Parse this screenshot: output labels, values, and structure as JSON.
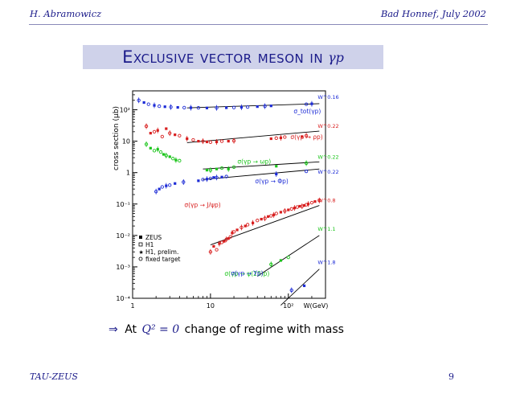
{
  "header": {
    "left": "H. Abramowicz",
    "right": "Bad Honnef, July 2002"
  },
  "title": {
    "text": "Exclusive vector meson in",
    "math": "γp"
  },
  "bullet": {
    "arrow": "⇒",
    "prefix": "At",
    "math": "Q² = 0",
    "text": "change of regime with mass"
  },
  "footer": {
    "left": "TAU-ZEUS",
    "page": "9"
  },
  "colors": {
    "accent": "#1b1b8a",
    "title_bg": "#cfd2ea",
    "blue": "#1c2bd6",
    "red": "#d81e1e",
    "green": "#19c419",
    "black": "#000000"
  },
  "chart_data": {
    "type": "scatter",
    "title": "",
    "xlabel": "W(GeV)",
    "ylabel": "cross section (μb)",
    "xscale": "log",
    "yscale": "log",
    "xlim": [
      1,
      300
    ],
    "ylim": [
      0.0001,
      400
    ],
    "x_ticks": [
      "1",
      "10",
      "10²"
    ],
    "y_ticks": [
      "10⁻⁴",
      "10⁻³",
      "10⁻²",
      "10⁻¹",
      "1",
      "10",
      "10²"
    ],
    "legend": {
      "placement": "lower-left",
      "entries": [
        {
          "marker": "filled-square",
          "label": "ZEUS"
        },
        {
          "marker": "open-square",
          "label": "H1"
        },
        {
          "marker": "star",
          "label": "H1, prelim."
        },
        {
          "marker": "open-circle",
          "label": "fixed target"
        }
      ]
    },
    "series": [
      {
        "label": "σ_tot(γp)",
        "fit_label": "W^0.16",
        "color": "blue",
        "x": [
          1.2,
          1.4,
          1.6,
          1.9,
          2.2,
          2.6,
          3.1,
          3.8,
          4.6,
          5.6,
          7,
          9,
          12,
          16,
          20,
          25,
          30,
          40,
          50,
          60,
          170,
          200
        ],
        "y": [
          200,
          170,
          150,
          138,
          130,
          125,
          122,
          119,
          117,
          116,
          115,
          114,
          115,
          116,
          118,
          120,
          122,
          126,
          130,
          133,
          150,
          155
        ],
        "fit": [
          [
            5,
            115
          ],
          [
            250,
            156
          ]
        ]
      },
      {
        "label": "σ(γp → ρp)",
        "fit_label": "W^0.22",
        "color": "red",
        "x": [
          1.5,
          1.7,
          1.9,
          2.1,
          2.4,
          2.7,
          3.0,
          3.5,
          4,
          5,
          6,
          7,
          8,
          9,
          10,
          12,
          14,
          17,
          20,
          60,
          70,
          80,
          90,
          150,
          170
        ],
        "y": [
          30,
          18,
          20,
          22,
          14,
          25,
          18,
          16,
          15,
          12,
          11,
          10,
          10,
          9.5,
          9.3,
          9.5,
          10,
          10,
          10.3,
          12,
          12.5,
          12.8,
          13.5,
          14,
          15
        ],
        "fit": [
          [
            5,
            9
          ],
          [
            250,
            21
          ]
        ]
      },
      {
        "label": "σ(γp → ωp)",
        "fit_label": "W^0.22",
        "color": "green",
        "x": [
          1.5,
          1.7,
          1.9,
          2.1,
          2.3,
          2.5,
          2.7,
          3.0,
          3.3,
          3.6,
          4.0,
          9,
          10,
          12,
          14,
          17,
          20,
          70,
          170
        ],
        "y": [
          8,
          6,
          5,
          5.5,
          4.5,
          3.8,
          3.5,
          3.2,
          2.8,
          2.5,
          2.4,
          1.2,
          1.2,
          1.3,
          1.4,
          1.3,
          1.5,
          1.6,
          2.0
        ],
        "fit": [
          [
            8,
            1.3
          ],
          [
            250,
            2.2
          ]
        ]
      },
      {
        "label": "σ(γp → Φp)",
        "fit_label": "W^0.22",
        "color": "blue",
        "x": [
          2.0,
          2.2,
          2.4,
          2.7,
          3.0,
          3.5,
          4.5,
          7,
          8,
          9,
          10,
          11,
          12,
          14,
          16,
          70,
          170
        ],
        "y": [
          0.25,
          0.3,
          0.35,
          0.38,
          0.4,
          0.45,
          0.5,
          0.55,
          0.6,
          0.62,
          0.65,
          0.7,
          0.7,
          0.72,
          0.75,
          0.9,
          1.1
        ],
        "fit": [
          [
            8,
            0.6
          ],
          [
            250,
            1.3
          ]
        ]
      },
      {
        "label": "σ(γp → J/ψp)",
        "fit_label": "W^0.8",
        "color": "red",
        "x": [
          10,
          11,
          12,
          13,
          14,
          15,
          16,
          17,
          18,
          19,
          20,
          22,
          25,
          28,
          30,
          35,
          40,
          45,
          50,
          55,
          60,
          65,
          70,
          80,
          90,
          100,
          110,
          120,
          130,
          140,
          150,
          160,
          170,
          180,
          200,
          220,
          250
        ],
        "y": [
          0.003,
          0.0045,
          0.0035,
          0.0055,
          0.006,
          0.0065,
          0.0075,
          0.008,
          0.009,
          0.012,
          0.013,
          0.015,
          0.018,
          0.02,
          0.022,
          0.025,
          0.03,
          0.033,
          0.035,
          0.04,
          0.042,
          0.045,
          0.05,
          0.055,
          0.06,
          0.065,
          0.07,
          0.075,
          0.08,
          0.085,
          0.085,
          0.09,
          0.095,
          0.1,
          0.11,
          0.12,
          0.13
        ],
        "fit": [
          [
            10,
            0.005
          ],
          [
            250,
            0.09
          ]
        ]
      },
      {
        "label": "σ(γp → ψ(2S)p)",
        "fit_label": "W^1.1",
        "color": "green",
        "x": [
          60,
          80,
          100
        ],
        "y": [
          0.0012,
          0.0016,
          0.002
        ],
        "fit": [
          [
            40,
            0.0005
          ],
          [
            250,
            0.01
          ]
        ]
      },
      {
        "label": "σ(γp → Υp)",
        "fit_label": "W^1.8",
        "color": "blue",
        "x": [
          110,
          160
        ],
        "y": [
          0.00018,
          0.00025
        ],
        "fit": [
          [
            80,
            6e-05
          ],
          [
            250,
            0.00085
          ]
        ]
      }
    ]
  }
}
